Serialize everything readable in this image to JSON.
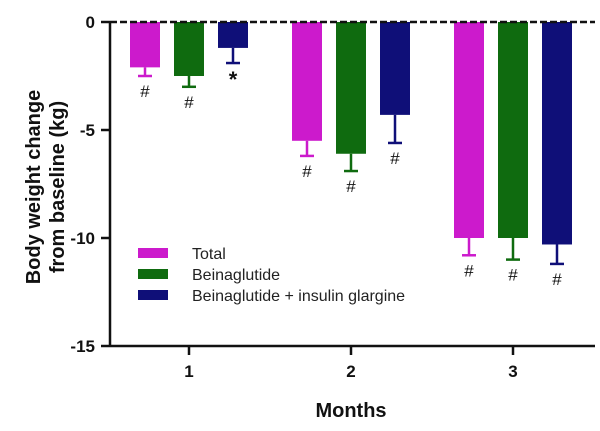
{
  "chart_data": {
    "type": "bar",
    "title": "",
    "xlabel": "Months",
    "ylabel_lines": [
      "Body weight  change",
      "from baseline (kg)"
    ],
    "categories": [
      "1",
      "2",
      "3"
    ],
    "ylim": [
      -15,
      0
    ],
    "yticks": [
      0,
      -5,
      -10,
      -15
    ],
    "ytick_labels": [
      "0",
      "-5",
      "-10",
      "-15"
    ],
    "legend_position": "bottom-left",
    "series": [
      {
        "name": "Total",
        "color": "#cc1acc",
        "values": [
          -2.1,
          -5.5,
          -10.0
        ],
        "errors": [
          0.4,
          0.7,
          0.8
        ],
        "markers": [
          "#",
          "#",
          "#"
        ]
      },
      {
        "name": "Beinaglutide",
        "color": "#0f6b0f",
        "values": [
          -2.5,
          -6.1,
          -10.0
        ],
        "errors": [
          0.5,
          0.8,
          1.0
        ],
        "markers": [
          "#",
          "#",
          "#"
        ]
      },
      {
        "name": "Beinaglutide + insulin glargine",
        "color": "#0f0f78",
        "values": [
          -1.2,
          -4.3,
          -10.3
        ],
        "errors": [
          0.7,
          1.3,
          0.9
        ],
        "markers": [
          "*",
          "#",
          "#"
        ]
      }
    ]
  }
}
